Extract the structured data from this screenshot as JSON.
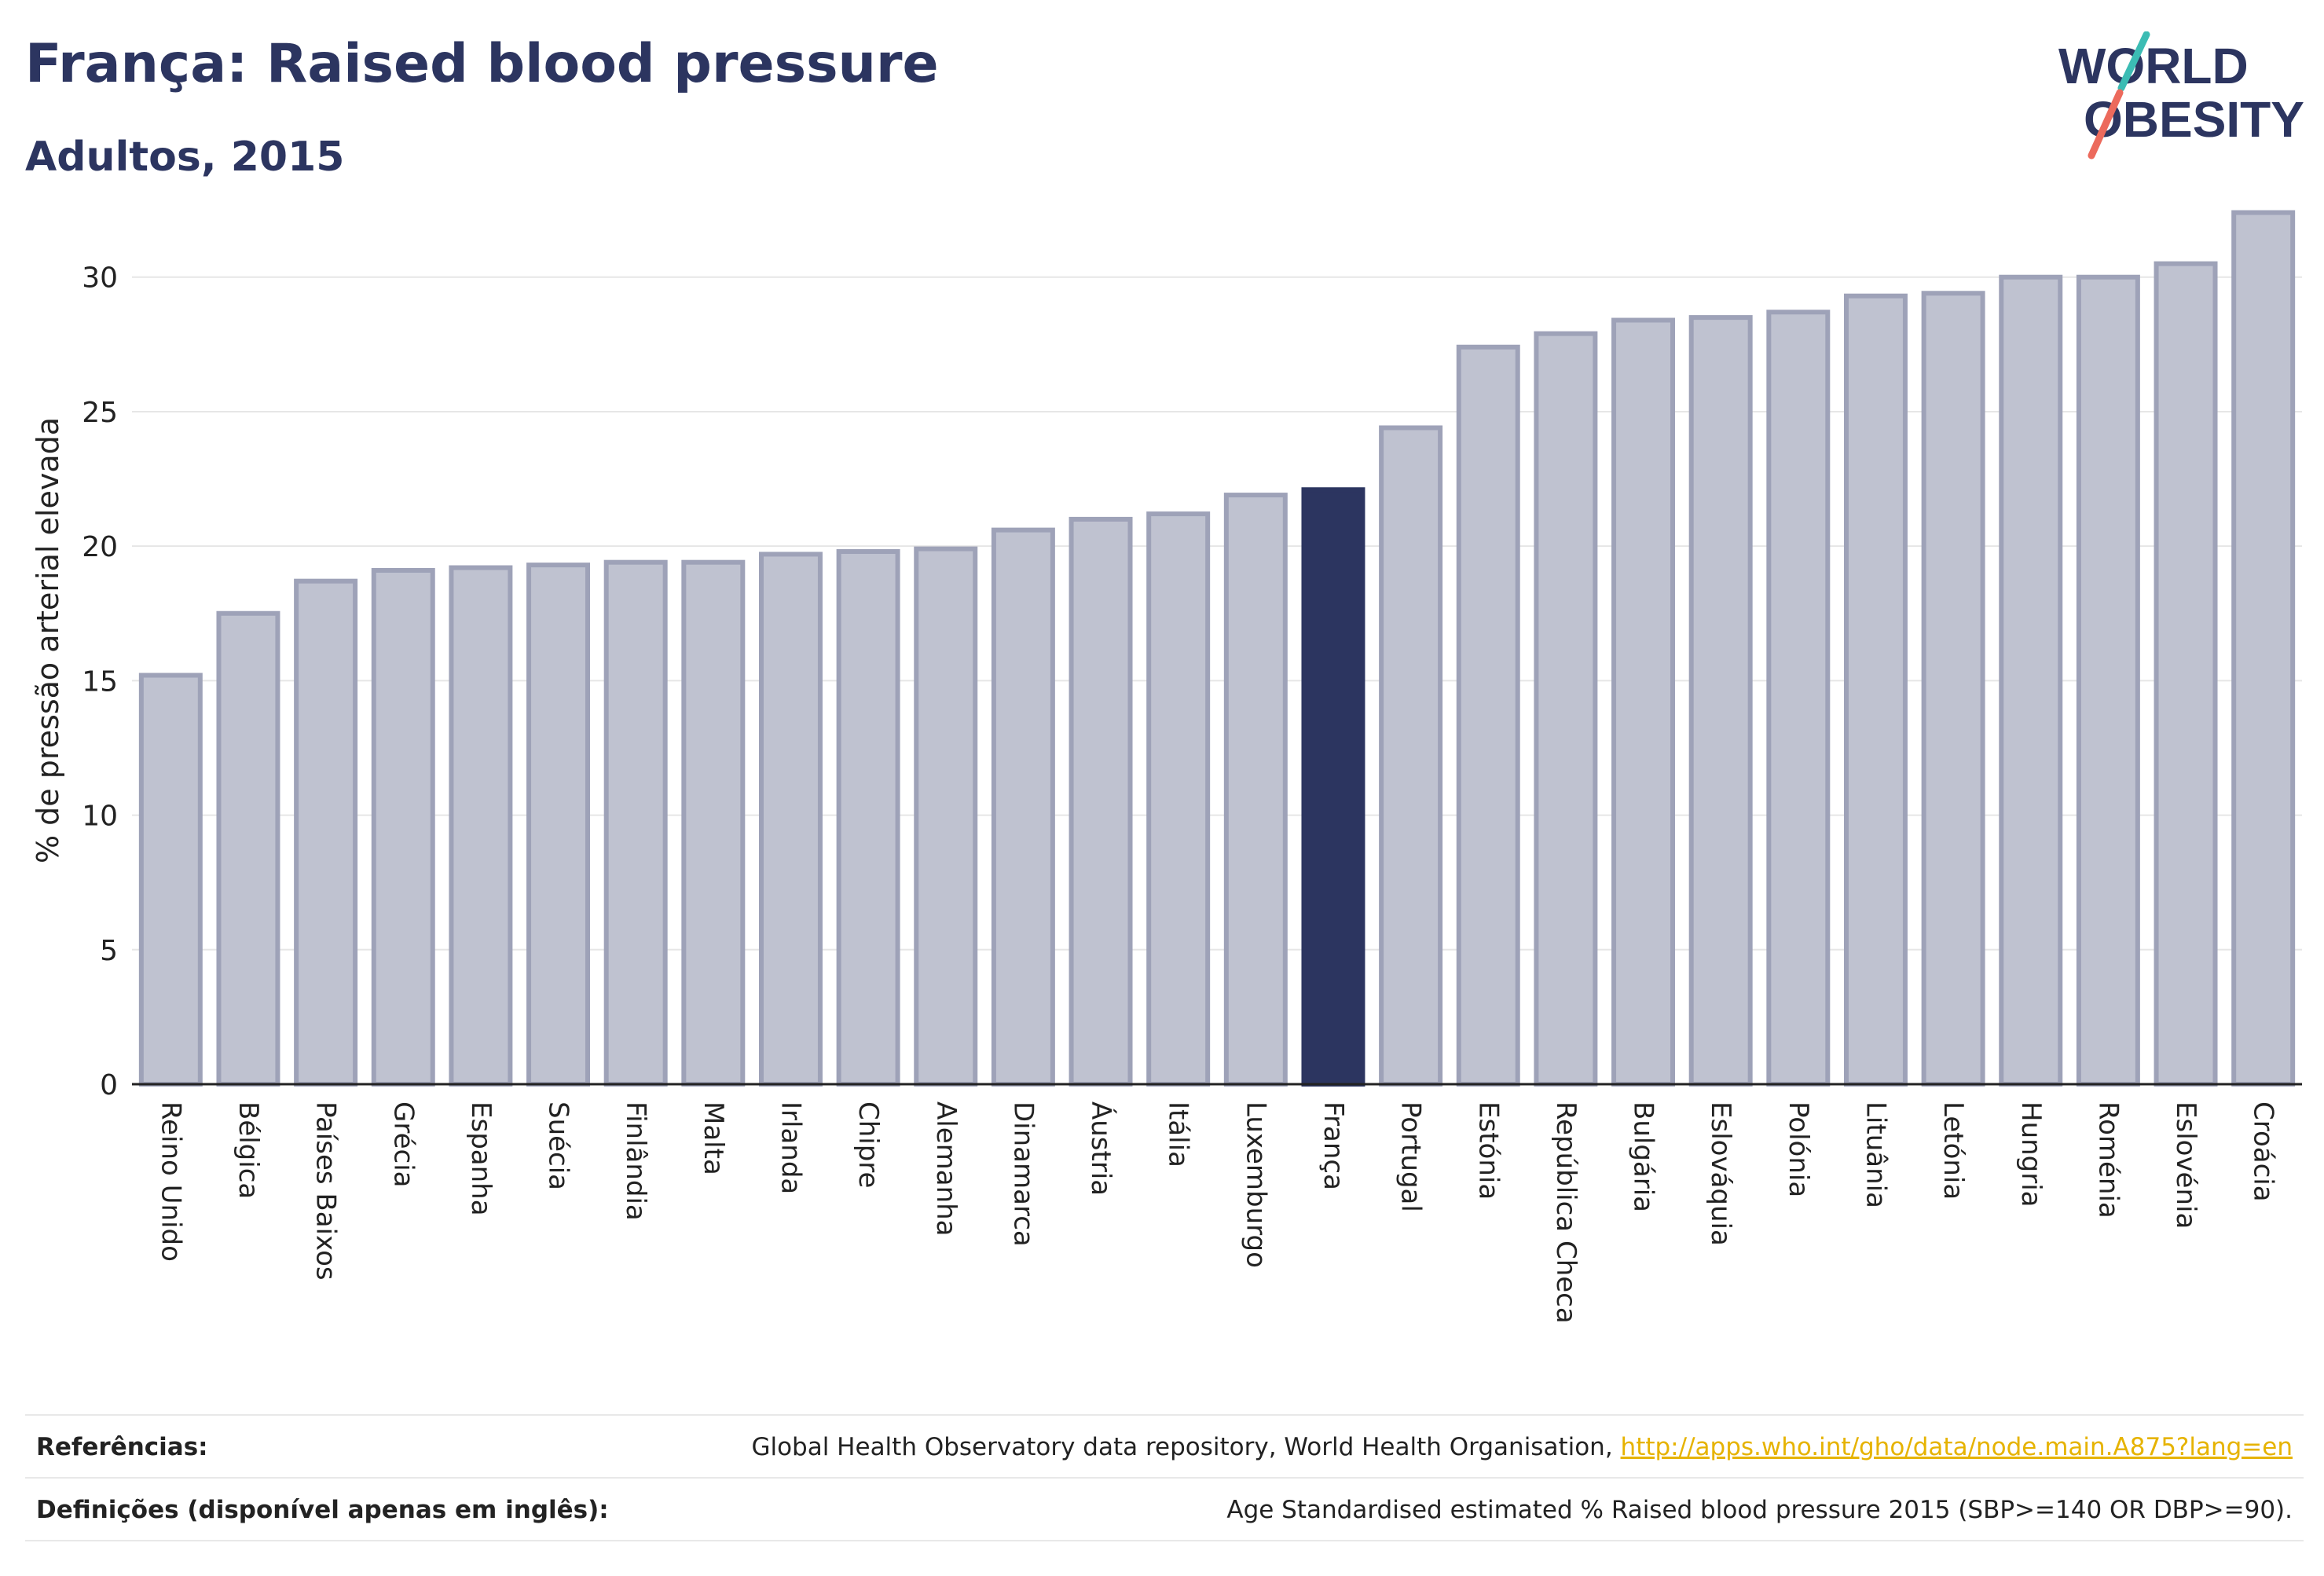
{
  "header": {
    "title": "França: Raised blood pressure",
    "subtitle": "Adultos, 2015"
  },
  "logo": {
    "line1": "WORLD",
    "line2": "OBESITY"
  },
  "colors": {
    "highlight": "#2c3560",
    "bar": "#bfc2d0",
    "bar_stroke": "#9ea2b8",
    "title": "#2c3560",
    "link": "#e6b300"
  },
  "chart_data": {
    "type": "bar",
    "ylabel": "% de pressão arterial elevada",
    "ylim": [
      0,
      33
    ],
    "yticks": [
      0,
      5,
      10,
      15,
      20,
      25,
      30
    ],
    "grid": true,
    "highlight": "França",
    "categories": [
      "Reino Unido",
      "Bélgica",
      "Países Baixos",
      "Grécia",
      "Espanha",
      "Suécia",
      "Finlândia",
      "Malta",
      "Irlanda",
      "Chipre",
      "Alemanha",
      "Dinamarca",
      "Áustria",
      "Itália",
      "Luxemburgo",
      "França",
      "Portugal",
      "Estónia",
      "República Checa",
      "Bulgária",
      "Eslováquia",
      "Polónia",
      "Lituânia",
      "Letónia",
      "Hungria",
      "Roménia",
      "Eslovénia",
      "Croácia"
    ],
    "values": [
      15.2,
      17.5,
      18.7,
      19.1,
      19.2,
      19.3,
      19.4,
      19.4,
      19.7,
      19.8,
      19.9,
      20.6,
      21.0,
      21.2,
      21.9,
      22.1,
      24.4,
      27.4,
      27.9,
      28.4,
      28.5,
      28.7,
      29.3,
      29.4,
      30.0,
      30.0,
      30.5,
      32.4
    ]
  },
  "footer": {
    "references_label": "Referências:",
    "references_text": "Global Health Observatory data repository, World Health Organisation, ",
    "references_link": "http://apps.who.int/gho/data/node.main.A875?lang=en",
    "definitions_label": "Definições (disponível apenas em inglês):",
    "definitions_text": "Age Standardised estimated % Raised blood pressure 2015 (SBP>=140 OR DBP>=90)."
  }
}
